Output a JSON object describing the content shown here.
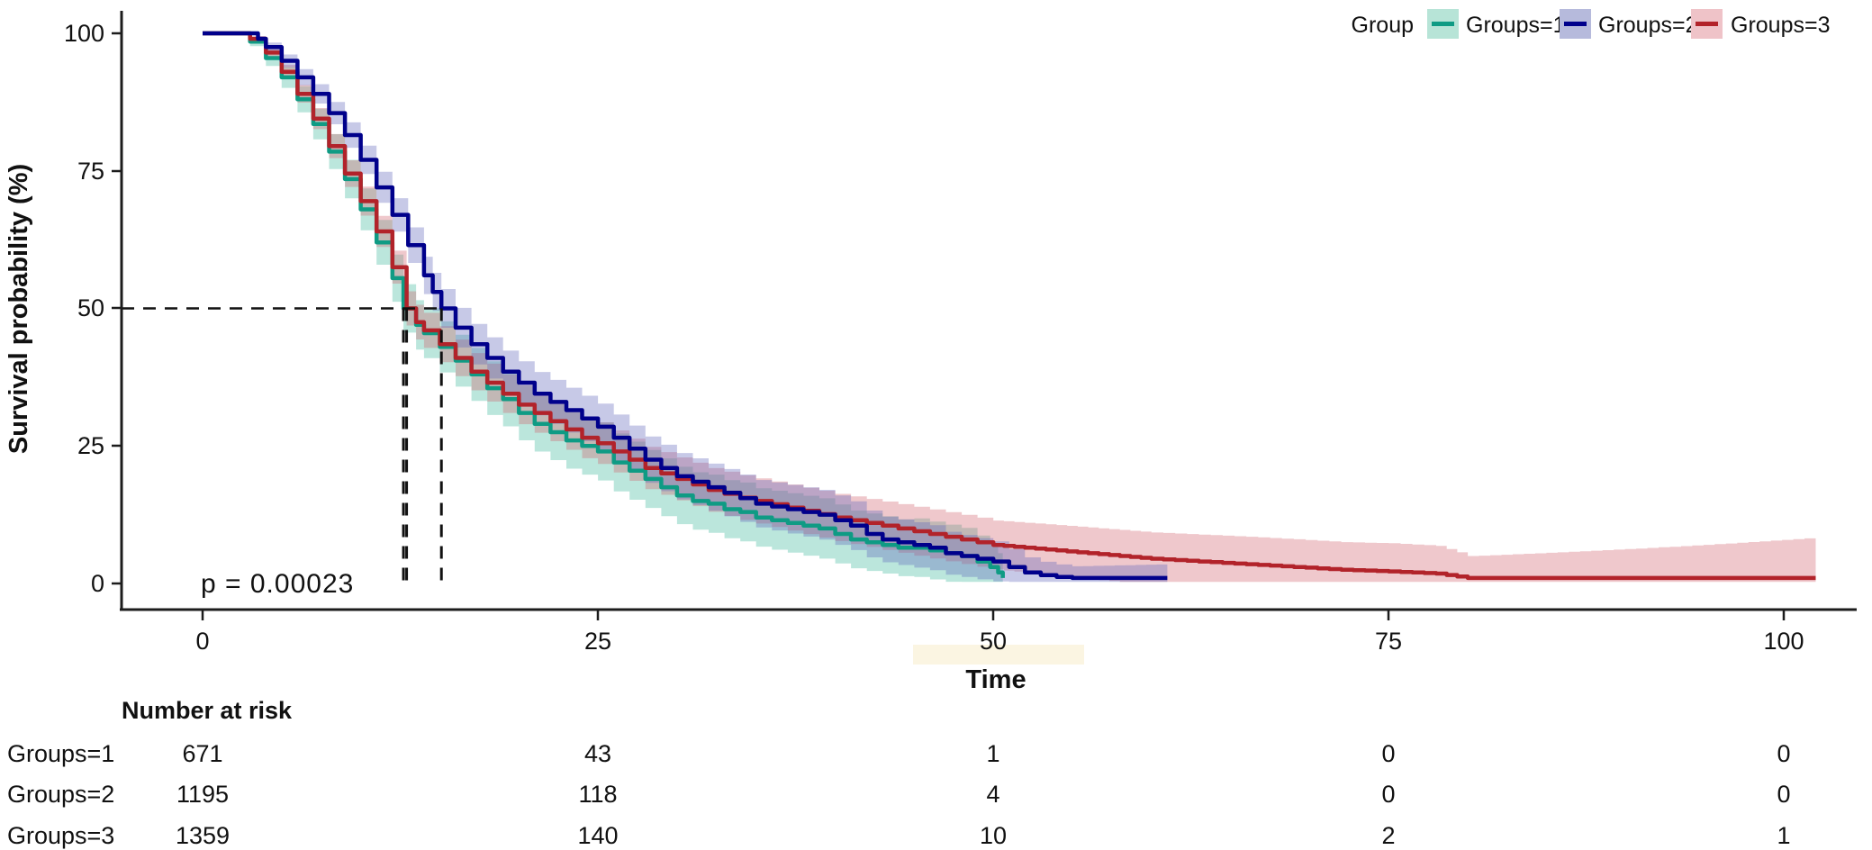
{
  "figure_type": "kaplan-meier-survival-plot",
  "p_value_label": "p = 0.00023",
  "legend": {
    "title": "Group",
    "entries": [
      {
        "label": "Groups=1"
      },
      {
        "label": "Groups=2"
      },
      {
        "label": "Groups=3"
      }
    ]
  },
  "risk_table": {
    "title": "Number at risk",
    "time_columns": [
      0,
      25,
      50,
      75,
      100
    ],
    "rows": [
      {
        "label": "Groups=1",
        "values": [
          671,
          43,
          1,
          0,
          0
        ]
      },
      {
        "label": "Groups=2",
        "values": [
          1195,
          118,
          4,
          0,
          0
        ]
      },
      {
        "label": "Groups=3",
        "values": [
          1359,
          140,
          10,
          2,
          1
        ]
      }
    ]
  },
  "chart_data": {
    "type": "line",
    "subtype": "km-step-curves-with-confidence-bands",
    "xlabel": "Time",
    "ylabel": "Survival probability (%)",
    "xlim": [
      0,
      104
    ],
    "ylim": [
      0,
      100
    ],
    "x_ticks": [
      0,
      25,
      50,
      75,
      100
    ],
    "y_ticks": [
      100,
      75,
      50,
      25,
      0
    ],
    "grid": "off",
    "legend_position": "top-right",
    "median_guides": {
      "survival_pct": 50,
      "times": [
        12.7,
        12.9,
        15.1
      ]
    },
    "highlight_box_color": "#FBF5E2",
    "series": [
      {
        "name": "Groups=1",
        "n_at_start": 671,
        "color": "#0F9B84",
        "band_color": "#B7E4D7",
        "band_rgba": "rgba(61,183,156,0.35)",
        "points": [
          [
            0,
            100
          ],
          [
            2.3,
            100
          ],
          [
            3,
            98.5
          ],
          [
            4,
            95.5
          ],
          [
            5,
            92
          ],
          [
            6,
            88
          ],
          [
            7,
            83.5
          ],
          [
            8,
            78.5
          ],
          [
            9,
            73.5
          ],
          [
            10,
            68
          ],
          [
            11,
            62
          ],
          [
            12,
            55.5
          ],
          [
            12.7,
            50
          ],
          [
            13.5,
            47
          ],
          [
            14,
            45.5
          ],
          [
            15,
            43
          ],
          [
            16,
            40.5
          ],
          [
            17,
            38
          ],
          [
            18,
            35.5
          ],
          [
            19,
            33.5
          ],
          [
            20,
            31
          ],
          [
            21,
            29
          ],
          [
            22,
            27.5
          ],
          [
            23,
            26
          ],
          [
            24,
            25
          ],
          [
            25,
            24
          ],
          [
            26,
            22
          ],
          [
            27,
            20.5
          ],
          [
            28,
            19
          ],
          [
            29,
            17.5
          ],
          [
            30,
            16
          ],
          [
            31,
            15
          ],
          [
            32,
            14.5
          ],
          [
            33,
            13.5
          ],
          [
            34,
            13
          ],
          [
            35,
            12
          ],
          [
            36,
            11.5
          ],
          [
            37,
            11
          ],
          [
            38,
            10.5
          ],
          [
            39,
            10
          ],
          [
            40,
            9
          ],
          [
            41,
            8
          ],
          [
            42,
            7.5
          ],
          [
            43,
            7
          ],
          [
            44,
            6.5
          ],
          [
            45,
            6.5
          ],
          [
            46,
            6
          ],
          [
            47,
            5.5
          ],
          [
            48,
            5
          ],
          [
            49,
            4
          ],
          [
            49.8,
            3
          ],
          [
            50.3,
            2
          ],
          [
            50.6,
            1
          ]
        ]
      },
      {
        "name": "Groups=2",
        "n_at_start": 1195,
        "color": "#00008B",
        "band_color": "#B6BADC",
        "band_rgba": "rgba(95,100,185,0.35)",
        "points": [
          [
            0,
            100
          ],
          [
            2.5,
            100
          ],
          [
            3.5,
            99
          ],
          [
            4,
            97.5
          ],
          [
            5,
            95
          ],
          [
            6,
            92
          ],
          [
            7,
            89
          ],
          [
            8,
            85.5
          ],
          [
            9,
            81.5
          ],
          [
            10,
            77
          ],
          [
            11,
            72
          ],
          [
            12,
            67
          ],
          [
            13,
            61.5
          ],
          [
            14,
            56
          ],
          [
            15.1,
            50
          ],
          [
            16,
            46.5
          ],
          [
            17,
            43.5
          ],
          [
            18,
            41
          ],
          [
            19,
            38.5
          ],
          [
            20,
            36.5
          ],
          [
            21,
            34.5
          ],
          [
            22,
            33
          ],
          [
            23,
            31.5
          ],
          [
            24,
            30
          ],
          [
            25,
            28.5
          ],
          [
            26,
            26.5
          ],
          [
            27,
            24.5
          ],
          [
            28,
            22.5
          ],
          [
            29,
            21
          ],
          [
            30,
            19.5
          ],
          [
            31,
            18.5
          ],
          [
            32,
            17.5
          ],
          [
            33,
            16.5
          ],
          [
            34,
            15.5
          ],
          [
            35,
            14.5
          ],
          [
            36,
            14
          ],
          [
            37,
            13.5
          ],
          [
            38,
            13
          ],
          [
            39,
            12.5
          ],
          [
            40,
            11.5
          ],
          [
            41,
            10.5
          ],
          [
            42,
            9
          ],
          [
            43,
            8
          ],
          [
            44,
            7.5
          ],
          [
            45,
            7
          ],
          [
            46,
            6.5
          ],
          [
            47,
            5.5
          ],
          [
            48,
            5
          ],
          [
            49,
            4.5
          ],
          [
            50,
            4
          ],
          [
            51,
            3
          ],
          [
            52,
            2
          ],
          [
            53,
            1.5
          ],
          [
            54,
            1.2
          ],
          [
            55,
            1
          ],
          [
            61,
            1
          ]
        ]
      },
      {
        "name": "Groups=3",
        "n_at_start": 1359,
        "color": "#B2232A",
        "band_color": "#EFC3C8",
        "band_rgba": "rgba(208,98,110,0.35)",
        "points": [
          [
            0,
            100
          ],
          [
            2.3,
            100
          ],
          [
            3,
            99
          ],
          [
            4,
            96.5
          ],
          [
            5,
            93
          ],
          [
            6,
            89
          ],
          [
            7,
            84.5
          ],
          [
            8,
            79.5
          ],
          [
            9,
            74.5
          ],
          [
            10,
            69.5
          ],
          [
            11,
            64
          ],
          [
            12,
            57.5
          ],
          [
            12.9,
            50
          ],
          [
            13.5,
            47.5
          ],
          [
            14,
            46
          ],
          [
            15,
            43.5
          ],
          [
            16,
            41
          ],
          [
            17,
            38.5
          ],
          [
            18,
            36.5
          ],
          [
            19,
            34.5
          ],
          [
            20,
            32.5
          ],
          [
            21,
            31
          ],
          [
            22,
            29.5
          ],
          [
            23,
            28
          ],
          [
            24,
            26.5
          ],
          [
            25,
            25.5
          ],
          [
            26,
            24
          ],
          [
            27,
            22.5
          ],
          [
            28,
            21
          ],
          [
            29,
            20
          ],
          [
            30,
            19
          ],
          [
            31,
            18
          ],
          [
            32,
            17
          ],
          [
            33,
            16.3
          ],
          [
            34,
            15.6
          ],
          [
            35,
            15
          ],
          [
            36,
            14.4
          ],
          [
            37,
            13.8
          ],
          [
            38,
            13.2
          ],
          [
            39,
            12.6
          ],
          [
            40,
            12
          ],
          [
            41,
            11.5
          ],
          [
            42,
            11
          ],
          [
            43,
            10.5
          ],
          [
            44,
            10
          ],
          [
            45,
            9.5
          ],
          [
            46,
            9
          ],
          [
            47,
            8.5
          ],
          [
            48,
            8
          ],
          [
            49,
            7.5
          ],
          [
            50,
            7
          ],
          [
            52,
            6.5
          ],
          [
            54,
            6
          ],
          [
            56,
            5.5
          ],
          [
            58,
            5
          ],
          [
            60,
            4.5
          ],
          [
            63,
            4
          ],
          [
            66,
            3.5
          ],
          [
            69,
            3
          ],
          [
            72,
            2.5
          ],
          [
            75,
            2.2
          ],
          [
            78,
            1.8
          ],
          [
            80,
            1
          ],
          [
            102,
            1
          ]
        ]
      }
    ]
  }
}
